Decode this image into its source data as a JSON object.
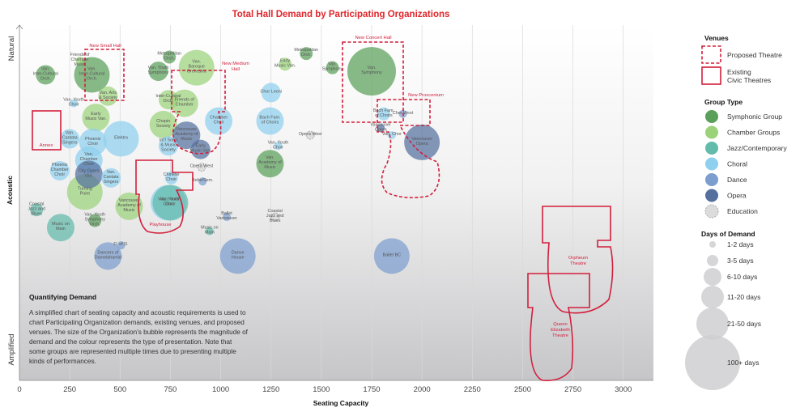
{
  "chart_data": {
    "type": "scatter",
    "title": "Total Hall Demand by Participating Organizations",
    "xlabel": "Seating Capacity",
    "ylabel": "Acoustic",
    "y_scale_labels": [
      "Natural",
      "Acoustic",
      "Amplified"
    ],
    "xlim": [
      0,
      3150
    ],
    "ylim": [
      0,
      100
    ],
    "x_ticks": [
      0,
      250,
      500,
      750,
      1000,
      1250,
      1500,
      1750,
      2000,
      2250,
      2500,
      2750,
      3000
    ],
    "grid": "vertical",
    "legend_position": "right",
    "colors": {
      "Symphonic Group": "#5aa05a",
      "Chamber Groups": "#9bd27a",
      "Jazz/Contemporary": "#63bbab",
      "Choral": "#8fd0ee",
      "Dance": "#7c9ecf",
      "Opera": "#55709f",
      "Education": "#dcdcdc",
      "Venue": "#d21f3c"
    },
    "days_scale": {
      "1-2 days": 1,
      "3-5 days": 2,
      "6-10 days": 3,
      "11-20 days": 4,
      "21-50 days": 5,
      "100+ days": 6
    },
    "bubbles": [
      {
        "label": "Van. Inter-Cultural Orch.",
        "group": "Symphonic Group",
        "x": 130,
        "y": 86,
        "days": 3
      },
      {
        "label": "Van. Inter-Cultural Orch.",
        "group": "Symphonic Group",
        "x": 360,
        "y": 86,
        "days": 5
      },
      {
        "label": "Friends of Chamber Music",
        "group": "Chamber Groups",
        "x": 300,
        "y": 90,
        "days": 1
      },
      {
        "label": "Van. Arts & Society",
        "group": "Chamber Groups",
        "x": 440,
        "y": 80,
        "days": 3
      },
      {
        "label": "Van. Youth Choir",
        "group": "Choral",
        "x": 270,
        "y": 78,
        "days": 1
      },
      {
        "label": "Early Music Van.",
        "group": "Chamber Groups",
        "x": 380,
        "y": 74,
        "days": 4
      },
      {
        "label": "Van. Cantata Singers",
        "group": "Choral",
        "x": 250,
        "y": 68,
        "days": 3
      },
      {
        "label": "Elektra",
        "group": "Choral",
        "x": 505,
        "y": 68,
        "days": 5
      },
      {
        "label": "Phoenix Choir",
        "group": "Choral",
        "x": 365,
        "y": 67,
        "days": 4
      },
      {
        "label": "Van. Chamber Choir",
        "group": "Choral",
        "x": 345,
        "y": 62,
        "days": 4
      },
      {
        "label": "Phoenix Chamber Choir",
        "group": "Choral",
        "x": 200,
        "y": 59,
        "days": 3
      },
      {
        "label": "City Opera Van.",
        "group": "Opera",
        "x": 345,
        "y": 58,
        "days": 4
      },
      {
        "label": "Van. Cantata Singers",
        "group": "Choral",
        "x": 455,
        "y": 57,
        "days": 3
      },
      {
        "label": "Turning Point",
        "group": "Chamber Groups",
        "x": 325,
        "y": 53,
        "days": 5
      },
      {
        "label": "Coastal Jazz and Blues",
        "group": "Jazz/Contemporary",
        "x": 85,
        "y": 48,
        "days": 2
      },
      {
        "label": "Music on Main",
        "group": "Jazz/Contemporary",
        "x": 205,
        "y": 43,
        "days": 4
      },
      {
        "label": "Van. Youth Symphony Orch.",
        "group": "Symphonic Group",
        "x": 375,
        "y": 45,
        "days": 2
      },
      {
        "label": "Vancouver Academy of Music",
        "group": "Chamber Groups",
        "x": 545,
        "y": 49,
        "days": 4
      },
      {
        "label": "D. of D.",
        "group": "Dance",
        "x": 505,
        "y": 38,
        "days": 1
      },
      {
        "label": "Dancers of Damelahamid",
        "group": "Dance",
        "x": 440,
        "y": 35,
        "days": 4
      },
      {
        "label": "Metropolitan Orch.",
        "group": "Symphonic Group",
        "x": 745,
        "y": 91,
        "days": 2
      },
      {
        "label": "Van. Youth Symphony",
        "group": "Symphonic Group",
        "x": 690,
        "y": 87,
        "days": 3
      },
      {
        "label": "Van. Baroque Orchestra",
        "group": "Chamber Groups",
        "x": 880,
        "y": 88,
        "days": 5
      },
      {
        "label": "Inter-Cultural Orch.",
        "group": "Chamber Groups",
        "x": 740,
        "y": 79,
        "days": 3
      },
      {
        "label": "Friends of Chamber",
        "group": "Chamber Groups",
        "x": 820,
        "y": 78,
        "days": 4
      },
      {
        "label": "Chopin Society",
        "group": "Chamber Groups",
        "x": 715,
        "y": 72,
        "days": 4
      },
      {
        "label": "Chamber Choir",
        "group": "Choral",
        "x": 990,
        "y": 73,
        "days": 4
      },
      {
        "label": "Vancouver Academy of Music",
        "group": "Opera",
        "x": 830,
        "y": 69,
        "days": 4
      },
      {
        "label": "Int'l Song & Music Society",
        "group": "Choral",
        "x": 740,
        "y": 66,
        "days": 3
      },
      {
        "label": "Early Music Van.",
        "group": "Opera",
        "x": 900,
        "y": 65,
        "days": 3
      },
      {
        "label": "Opera West",
        "group": "Education",
        "x": 905,
        "y": 60,
        "days": 1
      },
      {
        "label": "Chinese Choir",
        "group": "Choral",
        "x": 755,
        "y": 57,
        "days": 2
      },
      {
        "label": "Bebe/Sem.",
        "group": "Dance",
        "x": 910,
        "y": 56,
        "days": 1
      },
      {
        "label": "Van. Youth Choir",
        "group": "Choral",
        "x": 740,
        "y": 50,
        "days": 5
      },
      {
        "label": "Van. Youth Choir",
        "group": "Jazz/Contemporary",
        "x": 750,
        "y": 50,
        "days": 5
      },
      {
        "label": "Ballet Vancouver",
        "group": "Dance",
        "x": 1030,
        "y": 46,
        "days": 1
      },
      {
        "label": "Music on Main",
        "group": "Jazz/Contemporary",
        "x": 945,
        "y": 42,
        "days": 1
      },
      {
        "label": "Dance House",
        "group": "Dance",
        "x": 1085,
        "y": 35,
        "days": 5
      },
      {
        "label": "Early Music Van.",
        "group": "Chamber Groups",
        "x": 1320,
        "y": 89,
        "days": 2
      },
      {
        "label": "Metropolitan Orch.",
        "group": "Symphonic Group",
        "x": 1425,
        "y": 92,
        "days": 2
      },
      {
        "label": "Chor Leoni",
        "group": "Choral",
        "x": 1250,
        "y": 81,
        "days": 3
      },
      {
        "label": "Bach Fam. of Choirs",
        "group": "Choral",
        "x": 1245,
        "y": 73,
        "days": 4
      },
      {
        "label": "Van. Youth Choir",
        "group": "Choral",
        "x": 1285,
        "y": 66,
        "days": 1
      },
      {
        "label": "Van. Academy of Music",
        "group": "Symphonic Group",
        "x": 1245,
        "y": 61,
        "days": 4
      },
      {
        "label": "Coastal Jazz and Blues",
        "group": "Education",
        "x": 1270,
        "y": 46,
        "days": 1
      },
      {
        "label": "Opera West",
        "group": "Education",
        "x": 1445,
        "y": 69,
        "days": 1
      },
      {
        "label": "Van. Symphony",
        "group": "Symphonic Group",
        "x": 1555,
        "y": 88,
        "days": 2
      },
      {
        "label": "Van. Symphony",
        "group": "Symphonic Group",
        "x": 1750,
        "y": 87,
        "days": 6
      },
      {
        "label": "Bach Fam. of Choirs",
        "group": "Choral",
        "x": 1810,
        "y": 75,
        "days": 2
      },
      {
        "label": "Chor West",
        "group": "Dance",
        "x": 1905,
        "y": 75,
        "days": 1
      },
      {
        "label": "Vancouver Opera",
        "group": "Opera",
        "x": 1795,
        "y": 71,
        "days": 1
      },
      {
        "label": "Van. Chor",
        "group": "Choral",
        "x": 1850,
        "y": 69,
        "days": 1
      },
      {
        "label": "Vancouver Opera",
        "group": "Opera",
        "x": 2000,
        "y": 67,
        "days": 5
      },
      {
        "label": "Ballet BC",
        "group": "Dance",
        "x": 1850,
        "y": 35,
        "days": 5
      }
    ],
    "venues": [
      {
        "label": "New Small Hall",
        "kind": "Proposed Theatre"
      },
      {
        "label": "New Medium Hall",
        "kind": "Proposed Theatre"
      },
      {
        "label": "New Concert Hall",
        "kind": "Proposed Theatre"
      },
      {
        "label": "New Proscenium",
        "kind": "Proposed Theatre"
      },
      {
        "label": "Annex",
        "kind": "Existing Civic Theatres"
      },
      {
        "label": "Playhouse",
        "kind": "Existing Civic Theatres"
      },
      {
        "label": "Orpheum Theatre",
        "kind": "Existing Civic Theatres"
      },
      {
        "label": "Queen Elizabeth Theatre",
        "kind": "Existing Civic Theatres"
      }
    ]
  },
  "legend": {
    "venues_title": "Venues",
    "venues": [
      {
        "label": "Proposed Theatre",
        "style": "dashed"
      },
      {
        "label": "Existing Civic Theatres",
        "style": "solid"
      }
    ],
    "group_title": "Group Type",
    "groups": [
      "Symphonic Group",
      "Chamber Groups",
      "Jazz/Contemporary",
      "Choral",
      "Dance",
      "Opera",
      "Education"
    ],
    "days_title": "Days of Demand",
    "days": [
      "1-2 days",
      "3-5 days",
      "6-10 days",
      "11-20 days",
      "21-50 days",
      "100+ days"
    ]
  },
  "note": {
    "heading": "Quantifying Demand",
    "body": "A simplified chart of seating capacity and acoustic requirements is used to chart Participating Organization demands, existing venues, and proposed venues. The size of the Organization's bubble represents the magnitude of demand and the colour represents the type of presentation. Note that some groups are represented multiple times due to presenting multiple kinds of performances."
  }
}
